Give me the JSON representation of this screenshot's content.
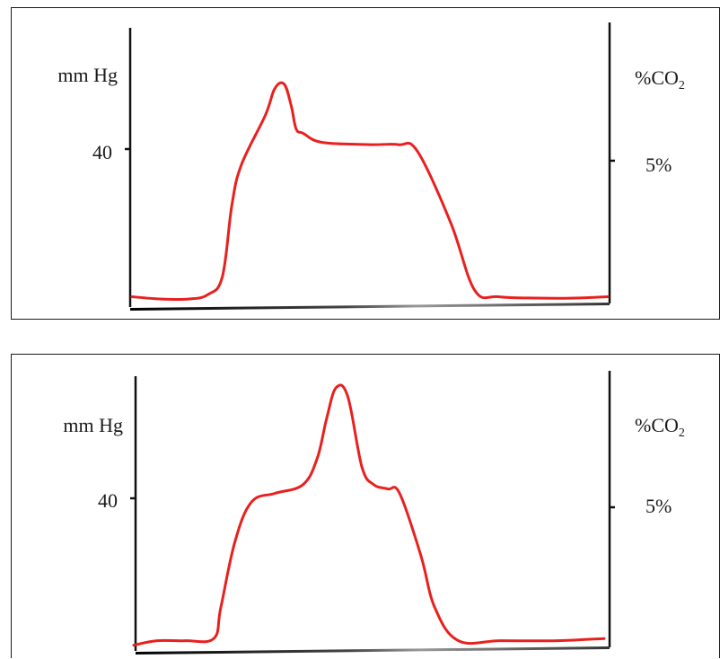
{
  "chart_data": [
    {
      "type": "line",
      "title": "",
      "left_axis_unit": "mm Hg",
      "right_axis_unit": {
        "main": "%CO",
        "subscript": "2"
      },
      "left_ticks": [
        {
          "value": 40,
          "label": "40"
        }
      ],
      "right_ticks": [
        {
          "value": 5,
          "label": "5%"
        }
      ],
      "ylim": [
        0,
        60
      ],
      "xlim": [
        0,
        10
      ],
      "series": [
        {
          "color": "#e8201e",
          "x": [
            0,
            0.6,
            1.2,
            1.6,
            1.9,
            2.1,
            2.3,
            2.8,
            3.0,
            3.2,
            3.35,
            3.45,
            3.6,
            4.0,
            5.0,
            5.6,
            6.0,
            6.7,
            7.2,
            7.7,
            8.5,
            9.3,
            10
          ],
          "y": [
            1.5,
            1.0,
            1.0,
            2.0,
            6.0,
            22,
            31,
            42,
            48,
            49,
            44,
            39,
            38,
            36,
            35.5,
            35.5,
            34,
            18,
            3.0,
            1.5,
            1.2,
            1.2,
            1.5
          ]
        }
      ]
    },
    {
      "type": "line",
      "title": "",
      "left_axis_unit": "mm Hg",
      "right_axis_unit": {
        "main": "%CO",
        "subscript": "2"
      },
      "left_ticks": [
        {
          "value": 40,
          "label": "40"
        }
      ],
      "right_ticks": [
        {
          "value": 5,
          "label": "5%"
        }
      ],
      "ylim": [
        0,
        60
      ],
      "xlim": [
        0,
        10
      ],
      "series": [
        {
          "color": "#e8201e",
          "x": [
            0,
            0.5,
            1.1,
            1.7,
            1.85,
            2.15,
            2.5,
            3.0,
            3.6,
            3.9,
            4.1,
            4.3,
            4.55,
            4.85,
            5.1,
            5.4,
            5.65,
            6.1,
            6.4,
            6.9,
            7.8,
            9.0,
            10
          ],
          "y": [
            0.5,
            1.5,
            1.5,
            2.0,
            9.0,
            24,
            33,
            35,
            37,
            43,
            52,
            59,
            57,
            41,
            37,
            36,
            35,
            21,
            9.0,
            1.5,
            1.5,
            1.5,
            2.0
          ]
        }
      ]
    }
  ]
}
